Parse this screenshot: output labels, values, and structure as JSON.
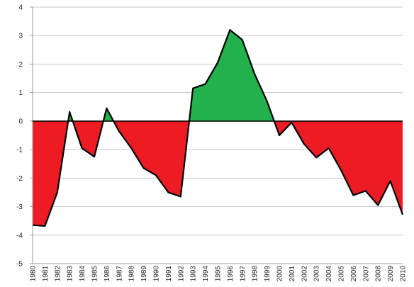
{
  "chart_data": {
    "type": "area",
    "title": "",
    "xlabel": "",
    "ylabel": "",
    "ylim": [
      -5,
      4
    ],
    "yticks": [
      4,
      3,
      2,
      1,
      0,
      -1,
      -2,
      -3,
      -4,
      -5
    ],
    "grid": true,
    "legend": "none",
    "fill_positive_color": "#22b14c",
    "fill_negative_color": "#ed1c24",
    "line_color": "#000000",
    "categories": [
      "1980",
      "1981",
      "1982",
      "1983",
      "1984",
      "1985",
      "1986",
      "1987",
      "1988",
      "1989",
      "1990",
      "1991",
      "1992",
      "1993",
      "1994",
      "1995",
      "1996",
      "1997",
      "1998",
      "1999",
      "2000",
      "2001",
      "2002",
      "2003",
      "2004",
      "2005",
      "2006",
      "2007",
      "2008",
      "2009",
      "2010"
    ],
    "series": [
      {
        "values": [
          -3.65,
          -3.68,
          -2.5,
          0.32,
          -0.95,
          -1.25,
          0.45,
          -0.35,
          -0.95,
          -1.65,
          -1.9,
          -2.5,
          -2.65,
          1.15,
          1.3,
          2.05,
          3.2,
          2.85,
          1.65,
          0.7,
          -0.5,
          -0.05,
          -0.8,
          -1.28,
          -0.95,
          -1.72,
          -2.6,
          -2.45,
          -2.95,
          -2.1,
          -3.28
        ]
      }
    ]
  }
}
